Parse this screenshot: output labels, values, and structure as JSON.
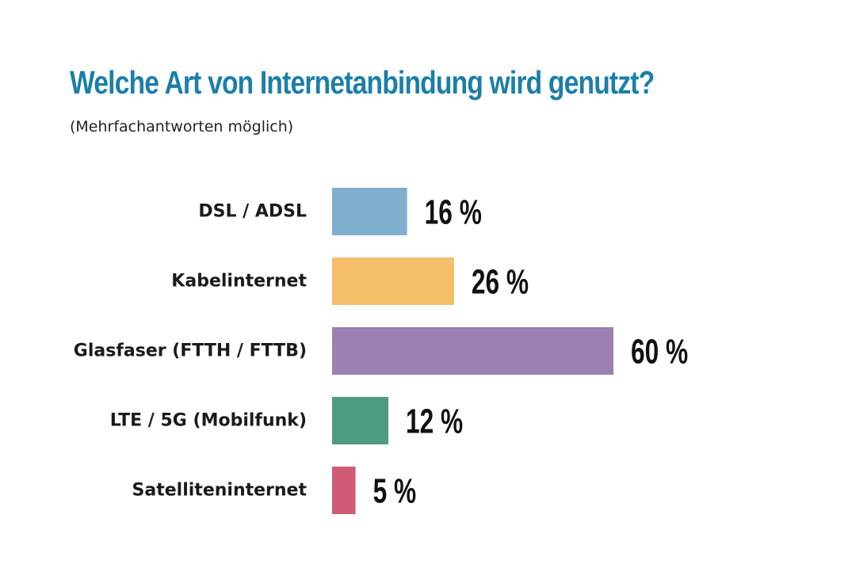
{
  "chart_data": {
    "type": "bar",
    "orientation": "horizontal",
    "title": "Welche Art von Internetanbindung wird genutzt?",
    "subtitle": "(Mehrfachantworten möglich)",
    "categories": [
      "DSL / ADSL",
      "Kabelinternet",
      "Glasfaser (FTTH / FTTB)",
      "LTE / 5G (Mobilfunk)",
      "Satelliteninternet"
    ],
    "values": [
      16,
      26,
      60,
      12,
      5
    ],
    "value_labels": [
      "16 %",
      "26 %",
      "60 %",
      "12 %",
      "5 %"
    ],
    "colors": [
      "#80aecf",
      "#f4bf68",
      "#9b80b1",
      "#4f9c84",
      "#cf5b77"
    ],
    "unit": "%",
    "xlim": [
      0,
      60
    ],
    "grid": false,
    "legend": "none"
  }
}
